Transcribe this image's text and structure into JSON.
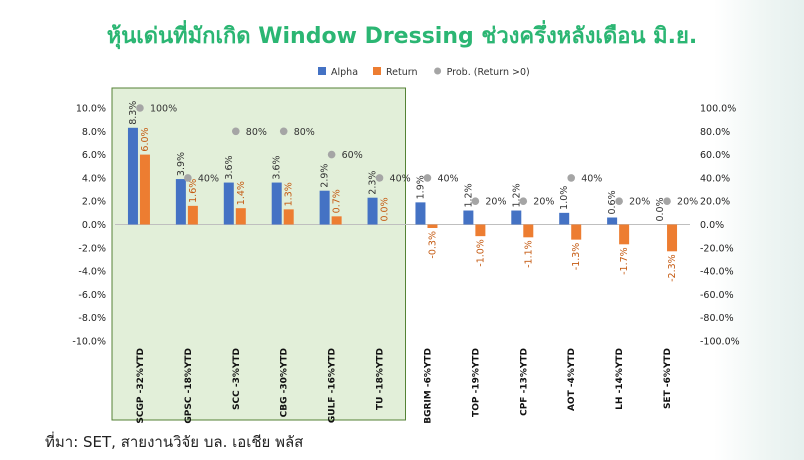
{
  "title": "หุ้นเด่นที่มักเกิด Window Dressing ช่วงครึ่งหลังเดือน มิ.ย.",
  "source": "ที่มา: SET, สายงานวิจัย บล. เอเชีย พลัส",
  "chart_data": {
    "type": "bar",
    "categories": [
      "SCGP -32%YTD",
      "GPSC -18%YTD",
      "SCC -3%YTD",
      "CBG -30%YTD",
      "GULF -16%YTD",
      "TU -18%YTD",
      "BGRIM -6%YTD",
      "TOP -19%YTD",
      "CPF -13%YTD",
      "AOT -4%YTD",
      "LH -14%YTD",
      "SET -6%YTD"
    ],
    "series": [
      {
        "name": "Alpha",
        "axis": "left",
        "color": "#4472c4",
        "values": [
          8.3,
          3.9,
          3.6,
          3.6,
          2.9,
          2.3,
          1.9,
          1.2,
          1.2,
          1.0,
          0.6,
          0.0
        ],
        "labels": [
          "8.3%",
          "3.9%",
          "3.6%",
          "3.6%",
          "2.9%",
          "2.3%",
          "1.9%",
          "1.2%",
          "1.2%",
          "1.0%",
          "0.6%",
          "0.0%"
        ]
      },
      {
        "name": "Return",
        "axis": "left",
        "color": "#ed7d31",
        "values": [
          6.0,
          1.6,
          1.4,
          1.3,
          0.7,
          0.0,
          -0.3,
          -1.0,
          -1.1,
          -1.3,
          -1.7,
          -2.3
        ],
        "labels": [
          "6.0%",
          "1.6%",
          "1.4%",
          "1.3%",
          "0.7%",
          "0.0%",
          "-0.3%",
          "-1.0%",
          "-1.1%",
          "-1.3%",
          "-1.7%",
          "-2.3%"
        ]
      },
      {
        "name": "Prob. (Return >0)",
        "axis": "right",
        "type": "scatter",
        "color": "#a5a5a5",
        "values": [
          100,
          40,
          80,
          80,
          60,
          40,
          40,
          20,
          20,
          40,
          20,
          20
        ],
        "labels": [
          "100%",
          "40%",
          "80%",
          "80%",
          "60%",
          "40%",
          "40%",
          "20%",
          "20%",
          "40%",
          "20%",
          "20%"
        ]
      }
    ],
    "y_left": {
      "ylim": [
        -10,
        10
      ],
      "ticks": [
        "-10.0%",
        "-8.0%",
        "-6.0%",
        "-4.0%",
        "-2.0%",
        "0.0%",
        "2.0%",
        "4.0%",
        "6.0%",
        "8.0%",
        "10.0%"
      ]
    },
    "y_right": {
      "ylim": [
        -100,
        100
      ],
      "ticks": [
        "-100.0%",
        "-80.0%",
        "-60.0%",
        "-40.0%",
        "-20.0%",
        "0.0%",
        "20.0%",
        "40.0%",
        "60.0%",
        "80.0%",
        "100.0%"
      ]
    },
    "highlight": {
      "from_category": 0,
      "to_category": 5,
      "color": "#e2efd9",
      "border": "#548235"
    },
    "legend_position": "top",
    "grid": false
  }
}
